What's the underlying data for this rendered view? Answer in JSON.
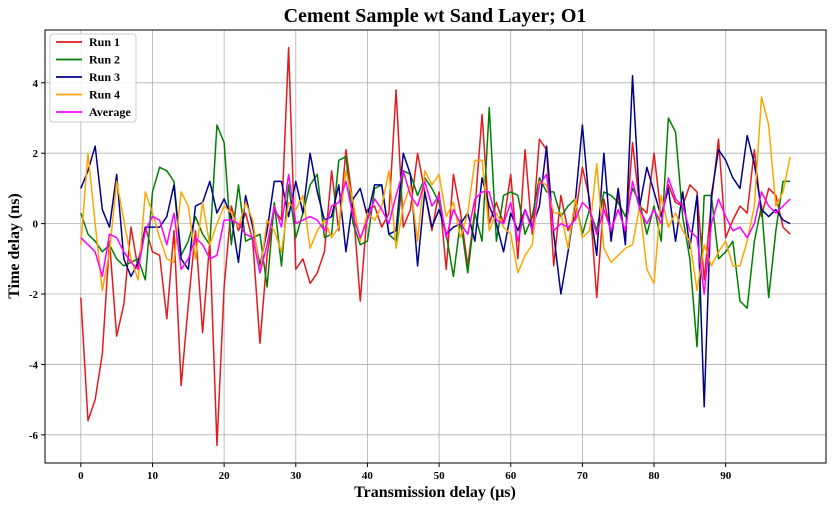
{
  "chart_data": {
    "type": "line",
    "title": "Cement Sample wt Sand Layer; O1",
    "xlabel": "Transmission delay (μs)",
    "ylabel": "Time delay (ns)",
    "xlim": [
      -5,
      104
    ],
    "ylim": [
      -6.8,
      5.5
    ],
    "xticks": [
      0,
      10,
      20,
      30,
      40,
      50,
      60,
      70,
      80,
      90
    ],
    "yticks": [
      -6,
      -4,
      -2,
      0,
      2,
      4
    ],
    "grid": true,
    "legend_position": "top-left",
    "x": [
      0,
      1,
      2,
      3,
      4,
      5,
      6,
      7,
      8,
      9,
      10,
      11,
      12,
      13,
      14,
      15,
      16,
      17,
      18,
      19,
      20,
      21,
      22,
      23,
      24,
      25,
      26,
      27,
      28,
      29,
      30,
      31,
      32,
      33,
      34,
      35,
      36,
      37,
      38,
      39,
      40,
      41,
      42,
      43,
      44,
      45,
      46,
      47,
      48,
      49,
      50,
      51,
      52,
      53,
      54,
      55,
      56,
      57,
      58,
      59,
      60,
      61,
      62,
      63,
      64,
      65,
      66,
      67,
      68,
      69,
      70,
      71,
      72,
      73,
      74,
      75,
      76,
      77,
      78,
      79,
      80,
      81,
      82,
      83,
      84,
      85,
      86,
      87,
      88,
      89,
      90,
      91,
      92,
      93,
      94,
      95,
      96,
      97,
      98,
      99
    ],
    "series": [
      {
        "name": "Run 1",
        "color": "#e41a1c",
        "values": [
          -2.1,
          -5.6,
          -5.0,
          -3.7,
          -0.5,
          -3.2,
          -2.3,
          -0.1,
          -1.3,
          -0.1,
          -0.8,
          -0.9,
          -2.7,
          -0.2,
          -4.6,
          -2.3,
          -0.2,
          -3.1,
          -0.5,
          -6.3,
          -1.8,
          0.5,
          -0.2,
          0.3,
          -0.5,
          -3.4,
          -0.9,
          0.4,
          0.1,
          5.0,
          -1.3,
          -1.0,
          -1.7,
          -1.4,
          -0.8,
          1.5,
          -0.2,
          2.1,
          0.5,
          -2.2,
          0.4,
          0.5,
          -0.1,
          0.3,
          3.8,
          -0.1,
          0.4,
          2.0,
          0.9,
          -0.2,
          0.9,
          -1.3,
          1.4,
          0.3,
          -1.2,
          0.4,
          3.1,
          0.0,
          0.6,
          0.0,
          1.4,
          -1.0,
          2.1,
          -0.3,
          2.4,
          2.1,
          -1.2,
          0.8,
          -0.2,
          0.2,
          1.6,
          0.7,
          -2.1,
          0.7,
          -0.3,
          0.8,
          -0.4,
          2.3,
          0.5,
          0.3,
          2.0,
          0.2,
          1.1,
          0.6,
          0.5,
          1.1,
          0.9,
          -1.6,
          0.6,
          2.4,
          -0.4,
          0.1,
          0.5,
          0.3,
          2.1,
          0.2,
          1.0,
          0.8,
          -0.1,
          -0.3
        ]
      },
      {
        "name": "Run 2",
        "color": "#008000",
        "values": [
          0.3,
          -0.3,
          -0.5,
          -0.8,
          -0.6,
          -1.0,
          -1.2,
          -1.1,
          -1.0,
          -1.6,
          0.9,
          1.6,
          1.5,
          1.2,
          -0.9,
          -0.5,
          0.2,
          -0.3,
          -0.6,
          2.8,
          2.3,
          -0.6,
          1.1,
          -0.5,
          -0.4,
          -0.3,
          -1.8,
          0.6,
          -1.2,
          1.1,
          -0.4,
          0.3,
          1.1,
          1.4,
          -0.4,
          -0.3,
          1.8,
          1.9,
          0.0,
          -0.6,
          -0.5,
          1.0,
          1.1,
          -0.3,
          -0.5,
          1.5,
          1.4,
          0.8,
          1.3,
          1.0,
          0.6,
          -0.3,
          -1.5,
          0.1,
          -1.4,
          0.3,
          -0.5,
          3.3,
          -0.5,
          0.8,
          0.9,
          0.8,
          -0.3,
          0.2,
          1.3,
          0.9,
          0.9,
          0.2,
          0.5,
          0.7,
          -0.3,
          0.4,
          -0.2,
          0.9,
          0.8,
          0.6,
          0.2,
          1.0,
          0.6,
          -0.3,
          0.5,
          -0.5,
          3.0,
          2.6,
          0.2,
          -1.0,
          -3.5,
          0.8,
          0.8,
          -1.0,
          -0.8,
          -0.5,
          -2.2,
          -2.4,
          -0.5,
          0.5,
          -2.1,
          -0.2,
          1.2,
          1.2
        ]
      },
      {
        "name": "Run 3",
        "color": "#00008b",
        "values": [
          1.0,
          1.5,
          2.2,
          0.4,
          -0.1,
          1.4,
          -1.0,
          -1.5,
          -1.1,
          -0.1,
          -0.1,
          -0.1,
          0.2,
          1.1,
          -1.0,
          -1.3,
          0.5,
          0.6,
          1.2,
          0.3,
          0.7,
          0.2,
          -1.1,
          0.8,
          -0.1,
          -1.2,
          -0.2,
          1.2,
          1.2,
          0.2,
          1.2,
          0.3,
          2.0,
          0.9,
          0.1,
          0.2,
          1.1,
          -0.8,
          0.7,
          1.0,
          0.2,
          1.1,
          1.1,
          -0.3,
          -0.2,
          2.0,
          1.4,
          -1.2,
          0.9,
          -0.1,
          0.4,
          -0.3,
          -0.1,
          0.0,
          0.3,
          -0.5,
          1.3,
          0.5,
          0.0,
          -0.8,
          0.3,
          -0.2,
          0.4,
          -0.1,
          0.5,
          2.2,
          -0.3,
          -2.0,
          -0.8,
          0.6,
          2.8,
          0.5,
          -0.9,
          2.0,
          -0.5,
          1.0,
          -0.6,
          4.2,
          0.5,
          1.6,
          0.9,
          0.2,
          1.0,
          -0.5,
          0.9,
          -0.7,
          0.8,
          -5.2,
          0.8,
          2.1,
          1.8,
          1.3,
          1.0,
          2.5,
          1.7,
          0.4,
          0.2,
          0.4,
          0.1,
          0.0
        ]
      },
      {
        "name": "Run 4",
        "color": "#ffa500",
        "values": [
          -0.6,
          2.0,
          0.0,
          -1.9,
          -0.8,
          1.2,
          0.1,
          -1.0,
          -1.6,
          0.9,
          0.3,
          -0.4,
          -1.0,
          -1.1,
          0.9,
          0.5,
          -1.0,
          0.6,
          -0.6,
          0.0,
          0.5,
          0.3,
          -0.1,
          0.6,
          0.1,
          -1.4,
          0.1,
          -0.2,
          -0.8,
          0.6,
          0.4,
          0.8,
          -0.7,
          -0.2,
          0.1,
          -0.4,
          -0.1,
          1.5,
          0.6,
          -0.5,
          0.3,
          0.1,
          0.5,
          1.5,
          -0.7,
          0.5,
          1.1,
          -0.5,
          1.5,
          1.1,
          1.4,
          0.2,
          0.6,
          -0.4,
          0.3,
          1.8,
          1.8,
          -0.2,
          0.3,
          -0.1,
          -0.3,
          -1.4,
          -0.9,
          -0.6,
          1.2,
          1.1,
          0.3,
          0.3,
          -0.7,
          0.7,
          -0.4,
          -0.2,
          1.7,
          -0.7,
          -1.1,
          -0.9,
          -0.7,
          -0.6,
          0.5,
          -1.3,
          -1.7,
          0.8,
          -0.1,
          0.3,
          -0.2,
          -0.5,
          -1.9,
          -0.6,
          -1.2,
          -0.8,
          -0.5,
          -1.2,
          -1.2,
          -0.5,
          0.5,
          3.6,
          2.8,
          0.5,
          0.9,
          1.9
        ]
      },
      {
        "name": "Average",
        "color": "#ff00ff",
        "values": [
          -0.4,
          -0.6,
          -0.8,
          -1.5,
          -0.3,
          -0.4,
          -0.8,
          -1.1,
          -1.3,
          -0.2,
          0.2,
          0.1,
          -0.6,
          0.3,
          -1.3,
          -1.0,
          -0.4,
          -0.6,
          -1.0,
          -0.9,
          0.1,
          0.1,
          0.0,
          -0.3,
          -0.4,
          -1.4,
          -0.6,
          0.5,
          -0.1,
          1.4,
          0.0,
          0.1,
          0.2,
          0.1,
          -0.2,
          0.5,
          0.6,
          1.2,
          0.2,
          -0.4,
          0.1,
          0.7,
          0.4,
          0.0,
          0.8,
          1.5,
          0.8,
          0.5,
          1.2,
          0.5,
          0.8,
          -0.4,
          0.4,
          0.0,
          -0.3,
          0.7,
          0.9,
          0.9,
          0.1,
          0.0,
          0.6,
          -0.5,
          0.4,
          -0.2,
          1.1,
          1.4,
          -0.2,
          0.0,
          -0.1,
          0.1,
          0.6,
          0.4,
          -0.3,
          0.4,
          -0.2,
          0.4,
          -0.2,
          1.2,
          0.4,
          0.0,
          0.4,
          0.0,
          1.3,
          0.7,
          0.5,
          -0.2,
          -0.4,
          -2.0,
          0.0,
          0.7,
          0.2,
          -0.2,
          -0.1,
          -0.4,
          0.0,
          0.9,
          0.5,
          0.3,
          0.5,
          0.7
        ]
      }
    ]
  }
}
